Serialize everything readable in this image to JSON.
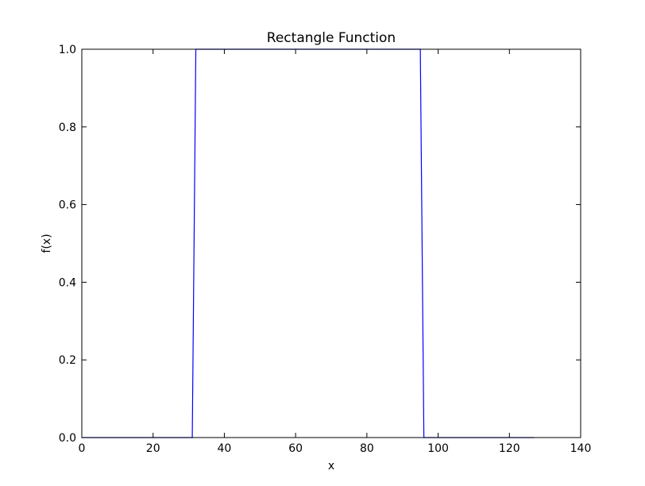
{
  "chart_data": {
    "type": "line",
    "title": "Rectangle Function",
    "xlabel": "x",
    "ylabel": "f(x)",
    "xlim": [
      0,
      140
    ],
    "ylim": [
      0.0,
      1.0
    ],
    "x_ticks": [
      0,
      20,
      40,
      60,
      80,
      100,
      120,
      140
    ],
    "x_tick_labels": [
      "0",
      "20",
      "40",
      "60",
      "80",
      "100",
      "120",
      "140"
    ],
    "y_ticks": [
      0.0,
      0.2,
      0.4,
      0.6,
      0.8,
      1.0
    ],
    "y_tick_labels": [
      "0.0",
      "0.2",
      "0.4",
      "0.6",
      "0.8",
      "1.0"
    ],
    "grid": false,
    "series": [
      {
        "color": "#0000ff",
        "x": [
          0,
          31,
          32,
          95,
          96,
          127
        ],
        "y": [
          0,
          0,
          1,
          1,
          0,
          0
        ]
      }
    ]
  }
}
